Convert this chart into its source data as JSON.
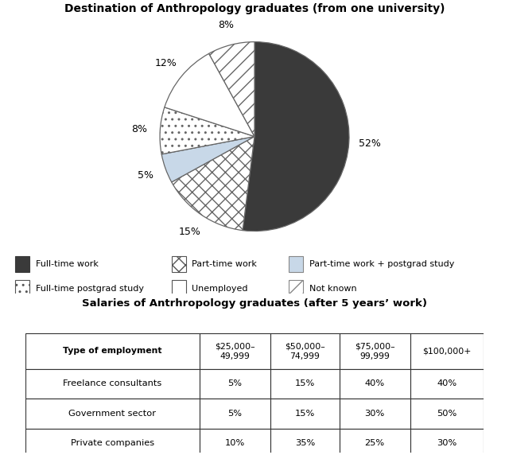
{
  "title_pie": "Destination of Anthropology graduates (from one university)",
  "title_table": "Salaries of Antrhropology graduates (after 5 years’ work)",
  "slices": [
    52,
    15,
    5,
    8,
    12,
    8
  ],
  "slice_labels": [
    "52%",
    "15%",
    "5%",
    "8%",
    "12%",
    "8%"
  ],
  "legend_labels": [
    "Full-time work",
    "Part-time work",
    "Part-time work + postgrad study",
    "Full-time postgrad study",
    "Unemployed",
    "Not known"
  ],
  "legend_face": [
    "#3a3a3a",
    "white",
    "#c8d8e8",
    "white",
    "white",
    "white"
  ],
  "legend_hatch": [
    null,
    "xx",
    null,
    "..",
    "~",
    "//"
  ],
  "legend_edge": [
    "#3a3a3a",
    "#555555",
    "#888888",
    "#555555",
    "#555555",
    "#888888"
  ],
  "pie_face": [
    "#3a3a3a",
    "white",
    "#c8d8e8",
    "white",
    "white",
    "white"
  ],
  "pie_hatch": [
    null,
    "xx",
    null,
    "..",
    "~",
    "//"
  ],
  "table_col_labels": [
    "Type of employment",
    "$25,000–\n49,999",
    "$50,000–\n74,999",
    "$75,000–\n99,999",
    "$100,000+"
  ],
  "table_rows": [
    [
      "Freelance consultants",
      "5%",
      "15%",
      "40%",
      "40%"
    ],
    [
      "Government sector",
      "5%",
      "15%",
      "30%",
      "50%"
    ],
    [
      "Private companies",
      "10%",
      "35%",
      "25%",
      "30%"
    ]
  ]
}
